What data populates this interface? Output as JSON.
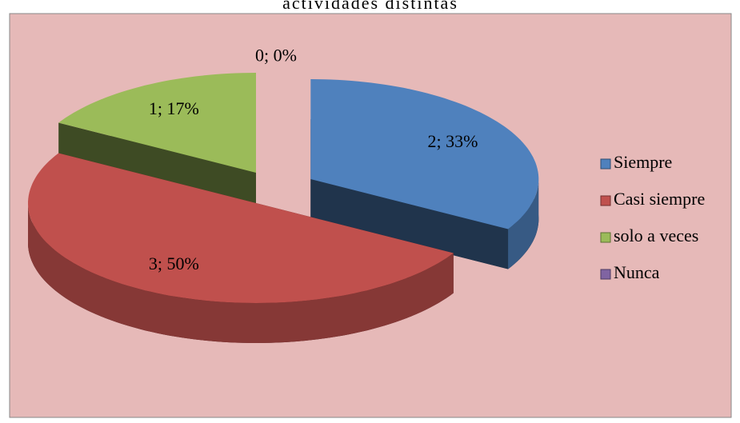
{
  "chart_data": {
    "type": "pie3d",
    "title": "actividades distintas",
    "categories": [
      "Siempre",
      "Casi siempre",
      "solo a veces",
      "Nunca"
    ],
    "values": [
      2,
      3,
      1,
      0
    ],
    "value_labels": [
      "2; 33%",
      "3; 50%",
      "1; 17%",
      "0; 0%"
    ],
    "colors": [
      "#4f81bd",
      "#c0504d",
      "#9bbb59",
      "#8064a2"
    ],
    "legend": "right"
  }
}
